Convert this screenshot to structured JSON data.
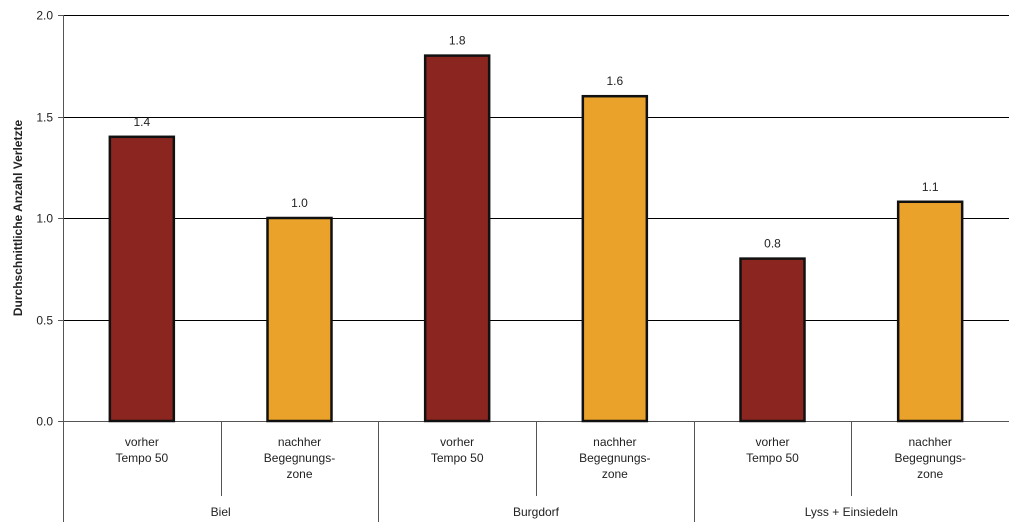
{
  "chart_data": {
    "type": "bar",
    "ylabel": "Durchschnittliche Anzahl Verletzte",
    "ylim": [
      0,
      2.0
    ],
    "yticks": [
      "0.0",
      "0.5",
      "1.0",
      "1.5",
      "2.0"
    ],
    "ytick_values": [
      0,
      0.5,
      1.0,
      1.5,
      2.0
    ],
    "grid": true,
    "groups": [
      {
        "name": "Biel",
        "bars": [
          {
            "label": [
              "vorher",
              "Tempo 50"
            ],
            "value": 1.4,
            "value_label": "1.4",
            "kind": "before"
          },
          {
            "label": [
              "nachher",
              "Begegnungs-",
              "zone"
            ],
            "value": 1.0,
            "value_label": "1.0",
            "kind": "after"
          }
        ]
      },
      {
        "name": "Burgdorf",
        "bars": [
          {
            "label": [
              "vorher",
              "Tempo 50"
            ],
            "value": 1.8,
            "value_label": "1.8",
            "kind": "before"
          },
          {
            "label": [
              "nachher",
              "Begegnungs-",
              "zone"
            ],
            "value": 1.6,
            "value_label": "1.6",
            "kind": "after"
          }
        ]
      },
      {
        "name": "Lyss + Einsiedeln",
        "bars": [
          {
            "label": [
              "vorher",
              "Tempo 50"
            ],
            "value": 0.8,
            "value_label": "0.8",
            "kind": "before"
          },
          {
            "label": [
              "nachher",
              "Begegnungs-",
              "zone"
            ],
            "value": 1.08,
            "value_label": "1.1",
            "kind": "after"
          }
        ]
      }
    ],
    "colors": {
      "before": "#8B2520",
      "after": "#EBA22A",
      "outline": "#111111",
      "grid": "#000000"
    }
  }
}
